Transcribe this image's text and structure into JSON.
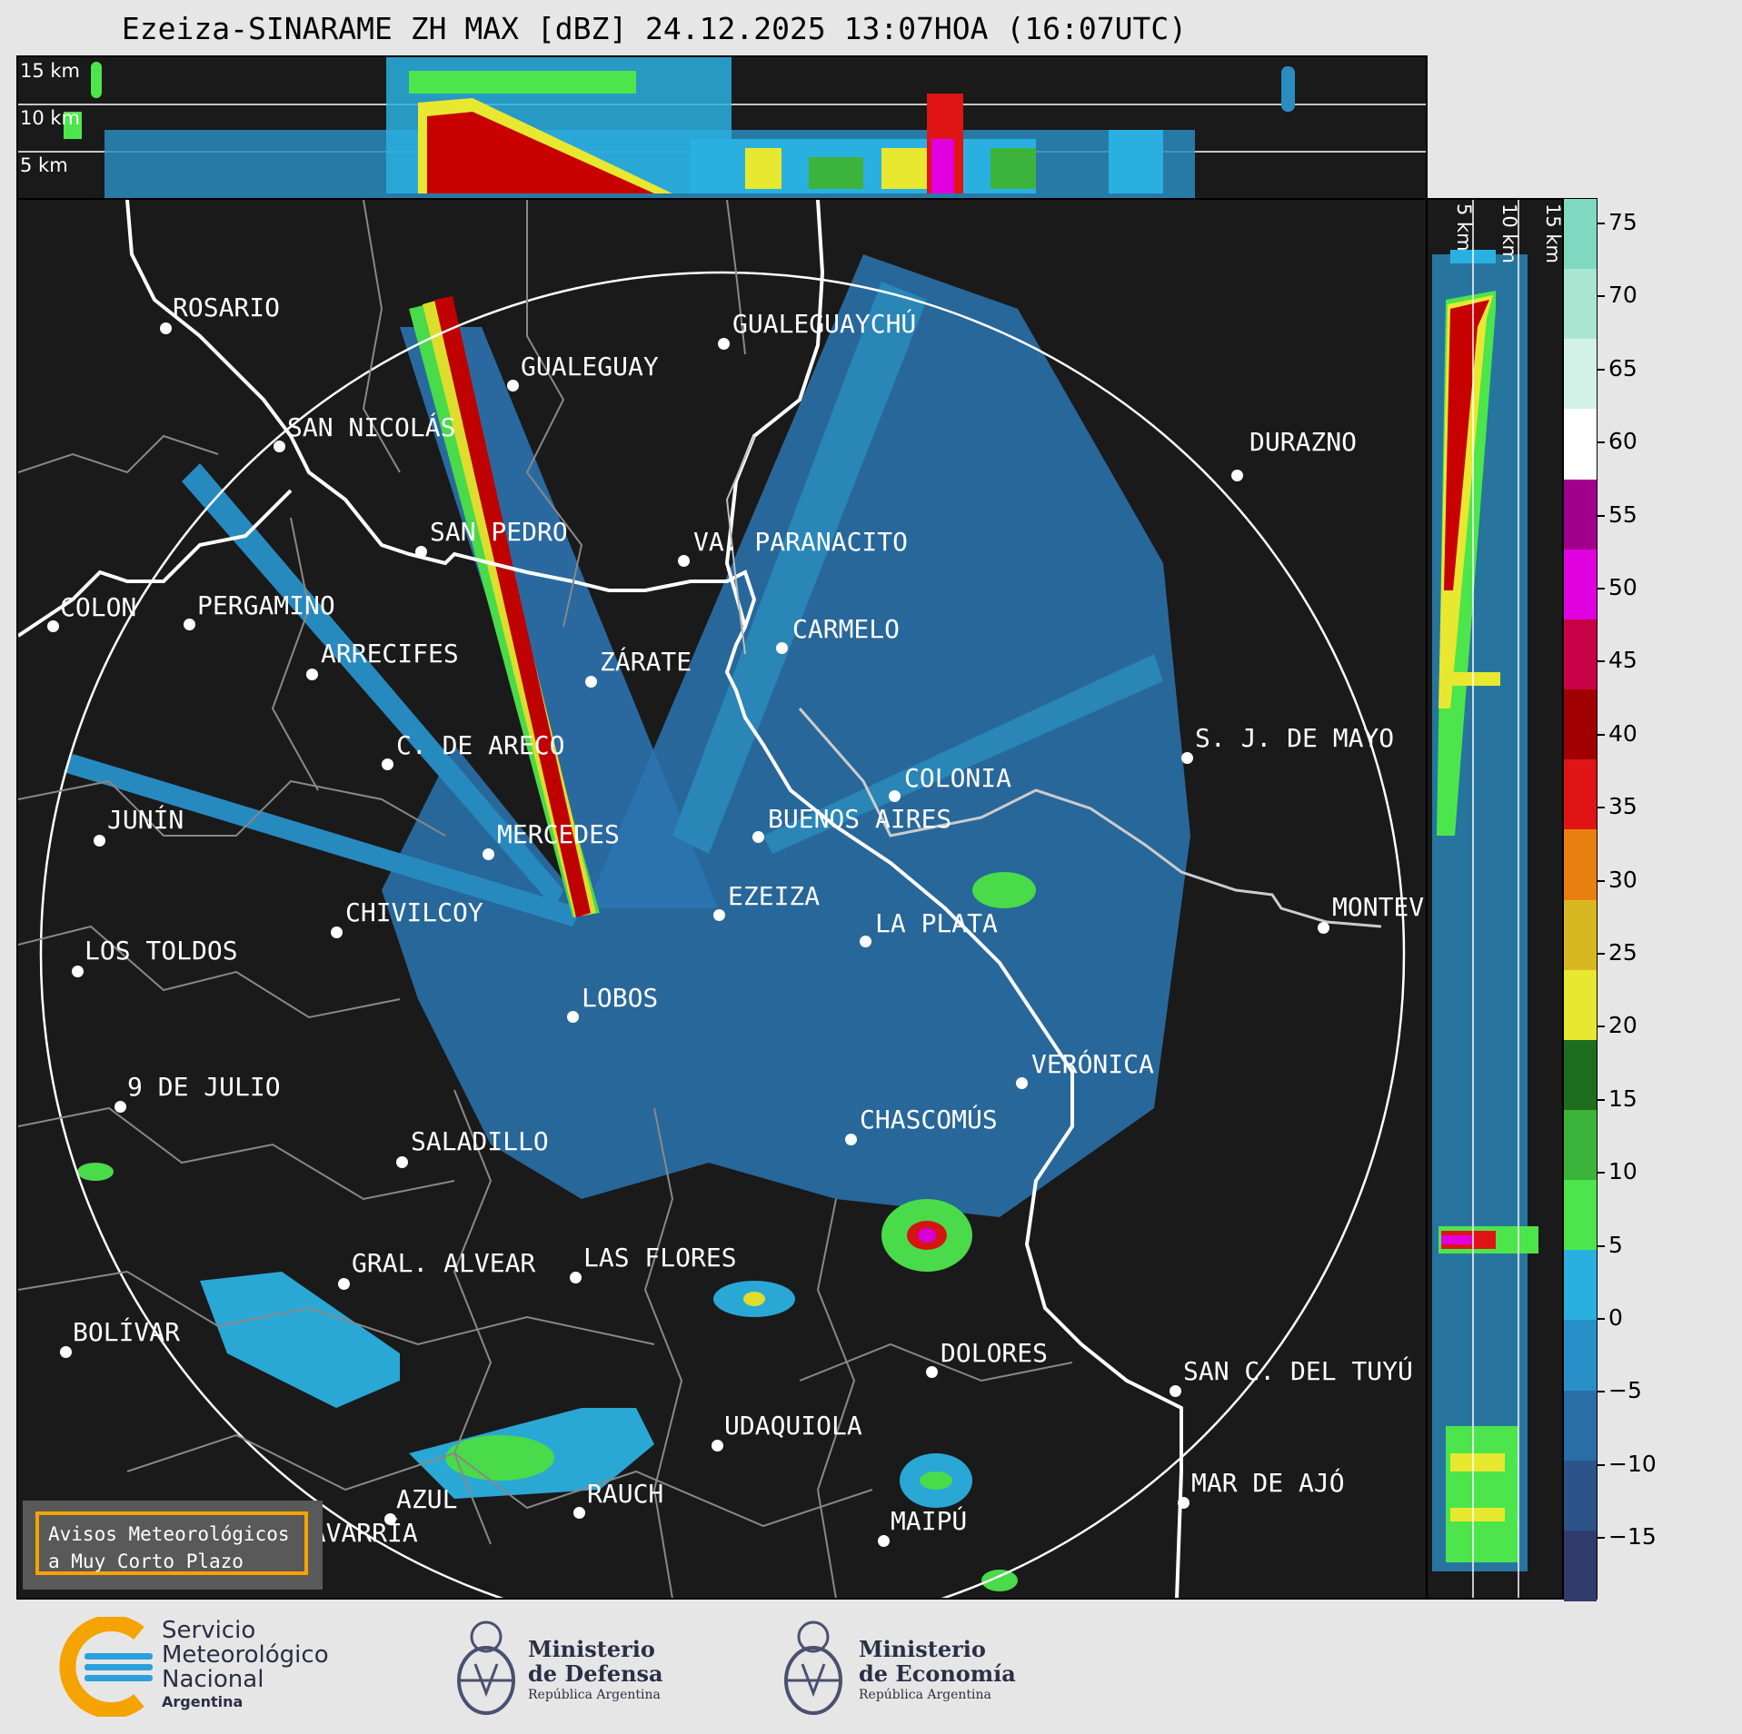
{
  "title": "Ezeiza-SINARAME ZH MAX [dBZ] 24.12.2025 13:07HOA (16:07UTC)",
  "height_labels_top": [
    "15 km",
    "10 km",
    "5 km"
  ],
  "height_labels_side": [
    "5 km",
    "10 km",
    "15 km"
  ],
  "cities": [
    {
      "name": "ROSARIO"
    },
    {
      "name": "GUALEGUAYCHÚ"
    },
    {
      "name": "GUALEGUAY"
    },
    {
      "name": "SAN NICOLÁS"
    },
    {
      "name": "DURAZNO"
    },
    {
      "name": "SAN PEDRO"
    },
    {
      "name": "VA. PARANACITO"
    },
    {
      "name": "COLON"
    },
    {
      "name": "PERGAMINO"
    },
    {
      "name": "CARMELO"
    },
    {
      "name": "ARRECIFES"
    },
    {
      "name": "ZÁRATE"
    },
    {
      "name": "S. J. DE MAYO"
    },
    {
      "name": "C. DE ARECO"
    },
    {
      "name": "COLONIA"
    },
    {
      "name": "JUNÍN"
    },
    {
      "name": "BUENOS AIRES"
    },
    {
      "name": "MERCEDES"
    },
    {
      "name": "MONTEV"
    },
    {
      "name": "EZEIZA"
    },
    {
      "name": "CHIVILCOY"
    },
    {
      "name": "LA PLATA"
    },
    {
      "name": "LOS TOLDOS"
    },
    {
      "name": "LOBOS"
    },
    {
      "name": "VERÓNICA"
    },
    {
      "name": "9 DE JULIO"
    },
    {
      "name": "CHASCOMÚS"
    },
    {
      "name": "SALADILLO"
    },
    {
      "name": "GRAL. ALVEAR"
    },
    {
      "name": "LAS FLORES"
    },
    {
      "name": "BOLÍVAR"
    },
    {
      "name": "DOLORES"
    },
    {
      "name": "SAN C. DEL TUYÚ"
    },
    {
      "name": "UDAQUIOLA"
    },
    {
      "name": "AZUL"
    },
    {
      "name": "RAUCH"
    },
    {
      "name": "MAR DE AJÓ"
    },
    {
      "name": "OLAVARRÍA"
    },
    {
      "name": "MAIPÚ"
    }
  ],
  "colorbar": {
    "unit": "dBZ",
    "ticks": [
      "75",
      "70",
      "65",
      "60",
      "55",
      "50",
      "45",
      "40",
      "35",
      "30",
      "25",
      "20",
      "15",
      "10",
      "5",
      "0",
      "−5",
      "−10",
      "−15"
    ],
    "colors": [
      "#7fd8c0",
      "#a8e6d2",
      "#d2f2e8",
      "#ffffff",
      "#a0008c",
      "#e000e0",
      "#c80046",
      "#a00000",
      "#e01414",
      "#e88010",
      "#d8b820",
      "#e8e830",
      "#1e6e1e",
      "#3cb43c",
      "#4ce64c",
      "#2ab0e0",
      "#2890c8",
      "#2a6ea8",
      "#2c5488",
      "#303c6c"
    ]
  },
  "notice": {
    "line1": "Avisos Meteorológicos",
    "line2": "a Muy Corto Plazo"
  },
  "logos": {
    "smn": {
      "line1": "Servicio",
      "line2": "Meteorológico",
      "line3": "Nacional",
      "line4": "Argentina"
    },
    "defensa": {
      "line1": "Ministerio",
      "line2": "de Defensa",
      "line3": "República Argentina"
    },
    "economia": {
      "line1": "Ministerio",
      "line2": "de Economía",
      "line3": "República Argentina"
    }
  }
}
